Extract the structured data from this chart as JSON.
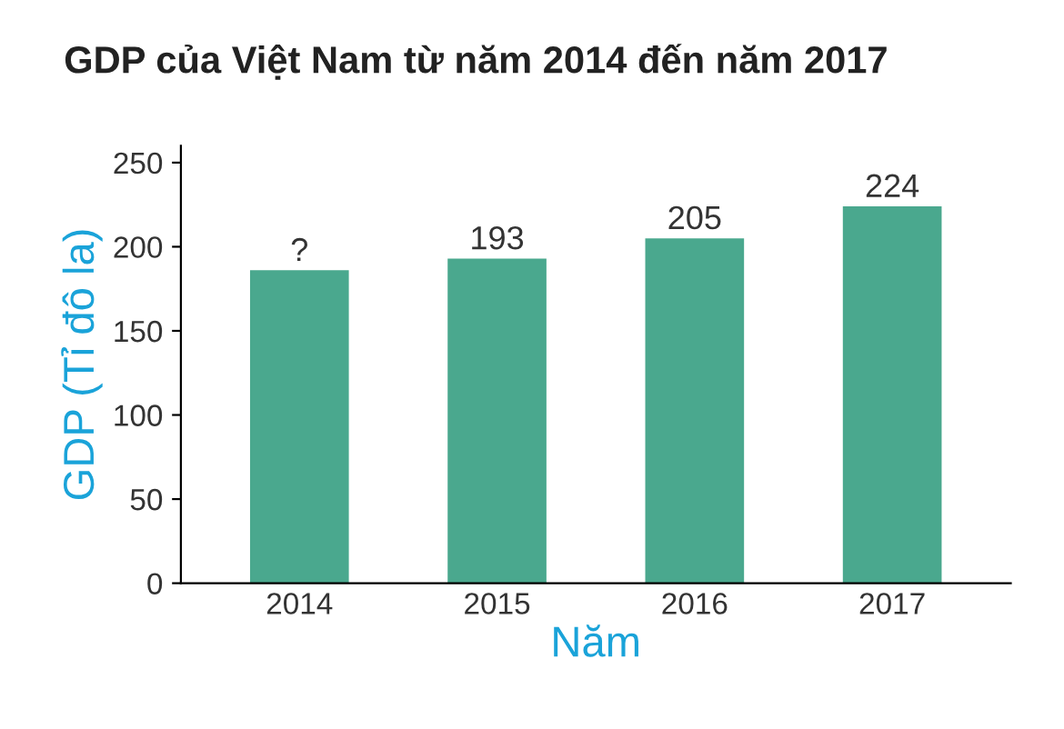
{
  "chart_data": {
    "type": "bar",
    "title": "GDP của Việt Nam từ năm 2014 đến năm 2017",
    "xlabel": "Năm",
    "ylabel": "GDP (Tỉ đô la)",
    "categories": [
      "2014",
      "2015",
      "2016",
      "2017"
    ],
    "values": [
      186,
      193,
      205,
      224
    ],
    "value_labels": [
      "?",
      "193",
      "205",
      "224"
    ],
    "color": "#4aa88e",
    "ylim": [
      0,
      260
    ],
    "yticks": [
      0,
      50,
      100,
      150,
      200,
      250
    ]
  }
}
